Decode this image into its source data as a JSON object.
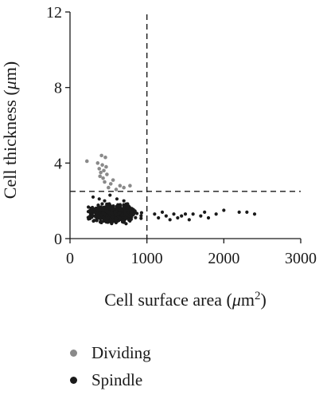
{
  "chart_data": {
    "type": "scatter",
    "xlabel": "Cell surface area (μm²)",
    "xlabel_parts": {
      "main": "Cell surface area (",
      "mu": "μ",
      "unit": "m",
      "sup": "2",
      "close": ")"
    },
    "ylabel": "Cell thickness (μm)",
    "ylabel_parts": {
      "main": "Cell thickness (",
      "mu": "μ",
      "unit": "m)"
    },
    "xlim": [
      0,
      3000
    ],
    "ylim": [
      0,
      12
    ],
    "xticks": [
      "0",
      "1000",
      "2000",
      "3000"
    ],
    "yticks": [
      "0",
      "4",
      "8",
      "12"
    ],
    "threshold_x": 1000,
    "threshold_y": 2.5,
    "grid": false,
    "legend_position": "bottom-left",
    "series": [
      {
        "name": "Dividing",
        "color": "#8a8a8a",
        "points": [
          [
            220,
            4.1
          ],
          [
            360,
            4.0
          ],
          [
            380,
            3.7
          ],
          [
            390,
            3.3
          ],
          [
            400,
            3.5
          ],
          [
            410,
            4.4
          ],
          [
            420,
            3.9
          ],
          [
            430,
            3.2
          ],
          [
            440,
            3.6
          ],
          [
            450,
            3.0
          ],
          [
            460,
            4.3
          ],
          [
            470,
            3.8
          ],
          [
            480,
            3.4
          ],
          [
            500,
            2.7
          ],
          [
            530,
            2.9
          ],
          [
            560,
            3.1
          ],
          [
            600,
            2.6
          ],
          [
            650,
            2.8
          ],
          [
            700,
            2.7
          ],
          [
            780,
            2.8
          ]
        ]
      },
      {
        "name": "Spindle",
        "color": "#1a1a1a",
        "points_summary": "dense cluster ~200–1100 μm², 0.7–2.3 μm with tail to ~2400 μm²",
        "points": [
          [
            1100,
            1.3
          ],
          [
            1150,
            1.1
          ],
          [
            1200,
            1.4
          ],
          [
            1250,
            1.2
          ],
          [
            1300,
            1.0
          ],
          [
            1350,
            1.3
          ],
          [
            1400,
            1.1
          ],
          [
            1450,
            1.2
          ],
          [
            1500,
            1.3
          ],
          [
            1550,
            1.0
          ],
          [
            1600,
            1.3
          ],
          [
            1700,
            1.2
          ],
          [
            1750,
            1.4
          ],
          [
            1800,
            1.1
          ],
          [
            1900,
            1.3
          ],
          [
            2000,
            1.5
          ],
          [
            2200,
            1.4
          ],
          [
            2300,
            1.4
          ],
          [
            2400,
            1.3
          ],
          [
            300,
            2.2
          ],
          [
            380,
            2.1
          ],
          [
            450,
            2.0
          ],
          [
            520,
            2.3
          ],
          [
            610,
            2.1
          ],
          [
            700,
            2.0
          ]
        ]
      }
    ]
  }
}
